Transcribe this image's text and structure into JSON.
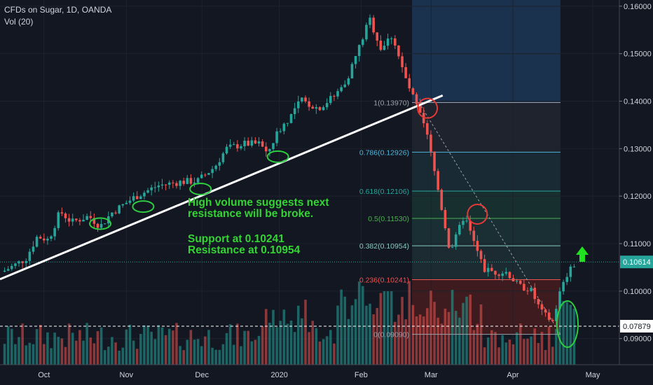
{
  "header": {
    "title": "CFDs on Sugar, 1D, OANDA",
    "volume_label": "Vol (20)"
  },
  "annotation": {
    "line1": "High volume suggests next",
    "line2": "resistance will be broke.",
    "line3": "Support at 0.10241",
    "line4": "Resistance at 0.10954"
  },
  "colors": {
    "background": "#131722",
    "up": "#26a69a",
    "down": "#ef5350",
    "text": "#d1d4dc",
    "annotation": "#34d434",
    "circle_red": "#e53935"
  },
  "chart_data": {
    "type": "candlestick",
    "title": "CFDs on Sugar, 1D, OANDA",
    "y_ticks": [
      "0.16000",
      "0.15000",
      "0.14000",
      "0.13000",
      "0.12000",
      "0.11000",
      "0.10000",
      "0.09000"
    ],
    "ylim": [
      0.0845,
      0.1613
    ],
    "x_ticks": [
      {
        "label": "Oct",
        "pos": 0.071
      },
      {
        "label": "Nov",
        "pos": 0.204
      },
      {
        "label": "Dec",
        "pos": 0.326
      },
      {
        "label": "2020",
        "pos": 0.451
      },
      {
        "label": "Feb",
        "pos": 0.583
      },
      {
        "label": "Mar",
        "pos": 0.696
      },
      {
        "label": "Apr",
        "pos": 0.828
      },
      {
        "label": "May",
        "pos": 0.957
      }
    ],
    "current_price": {
      "label": "0.10614",
      "value": 0.10614
    },
    "volume_level": {
      "label": "0.07879"
    },
    "price_path": [
      {
        "t": 0.0,
        "p": 0.1041
      },
      {
        "t": 0.04,
        "p": 0.1068
      },
      {
        "t": 0.06,
        "p": 0.1115
      },
      {
        "t": 0.08,
        "p": 0.1108
      },
      {
        "t": 0.1,
        "p": 0.1168
      },
      {
        "t": 0.12,
        "p": 0.1145
      },
      {
        "t": 0.15,
        "p": 0.1158
      },
      {
        "t": 0.17,
        "p": 0.1136
      },
      {
        "t": 0.19,
        "p": 0.1165
      },
      {
        "t": 0.23,
        "p": 0.1198
      },
      {
        "t": 0.27,
        "p": 0.1222
      },
      {
        "t": 0.31,
        "p": 0.123
      },
      {
        "t": 0.34,
        "p": 0.1232
      },
      {
        "t": 0.37,
        "p": 0.1262
      },
      {
        "t": 0.39,
        "p": 0.13
      },
      {
        "t": 0.42,
        "p": 0.131
      },
      {
        "t": 0.45,
        "p": 0.131
      },
      {
        "t": 0.46,
        "p": 0.1286
      },
      {
        "t": 0.48,
        "p": 0.1336
      },
      {
        "t": 0.5,
        "p": 0.1365
      },
      {
        "t": 0.52,
        "p": 0.1402
      },
      {
        "t": 0.55,
        "p": 0.1385
      },
      {
        "t": 0.58,
        "p": 0.1412
      },
      {
        "t": 0.6,
        "p": 0.1445
      },
      {
        "t": 0.62,
        "p": 0.1508
      },
      {
        "t": 0.64,
        "p": 0.1573
      },
      {
        "t": 0.66,
        "p": 0.151
      },
      {
        "t": 0.68,
        "p": 0.154
      },
      {
        "t": 0.7,
        "p": 0.1455
      },
      {
        "t": 0.72,
        "p": 0.1395
      },
      {
        "t": 0.74,
        "p": 0.133
      },
      {
        "t": 0.76,
        "p": 0.121
      },
      {
        "t": 0.78,
        "p": 0.1085
      },
      {
        "t": 0.79,
        "p": 0.111
      },
      {
        "t": 0.805,
        "p": 0.116
      },
      {
        "t": 0.82,
        "p": 0.1108
      },
      {
        "t": 0.84,
        "p": 0.1045
      },
      {
        "t": 0.86,
        "p": 0.104
      },
      {
        "t": 0.88,
        "p": 0.104
      },
      {
        "t": 0.9,
        "p": 0.101
      },
      {
        "t": 0.92,
        "p": 0.1005
      },
      {
        "t": 0.94,
        "p": 0.0955
      },
      {
        "t": 0.96,
        "p": 0.0935
      },
      {
        "t": 0.97,
        "p": 0.099
      },
      {
        "t": 0.985,
        "p": 0.1035
      },
      {
        "t": 1.0,
        "p": 0.1061
      }
    ],
    "trendline": {
      "start": {
        "t": 0.0,
        "p": 0.1025
      },
      "end": {
        "t": 0.743,
        "p": 0.1412
      }
    },
    "fibonacci": {
      "levels": [
        {
          "label": "1(0.13970)",
          "value": 0.1397
        },
        {
          "label": "0.786(0.12926)",
          "value": 0.12926
        },
        {
          "label": "0.618(0.12106)",
          "value": 0.12106
        },
        {
          "label": "0.5(0.11530)",
          "value": 0.1153
        },
        {
          "label": "0.382(0.10954)",
          "value": 0.10954
        },
        {
          "label": "0.236(0.10241)",
          "value": 0.10241
        },
        {
          "label": "0(0.09090)",
          "value": 0.0909
        }
      ],
      "start": {
        "t": 0.714
      },
      "end": {
        "t": 0.973
      }
    },
    "support": 0.10241,
    "resistance": 0.10954
  }
}
